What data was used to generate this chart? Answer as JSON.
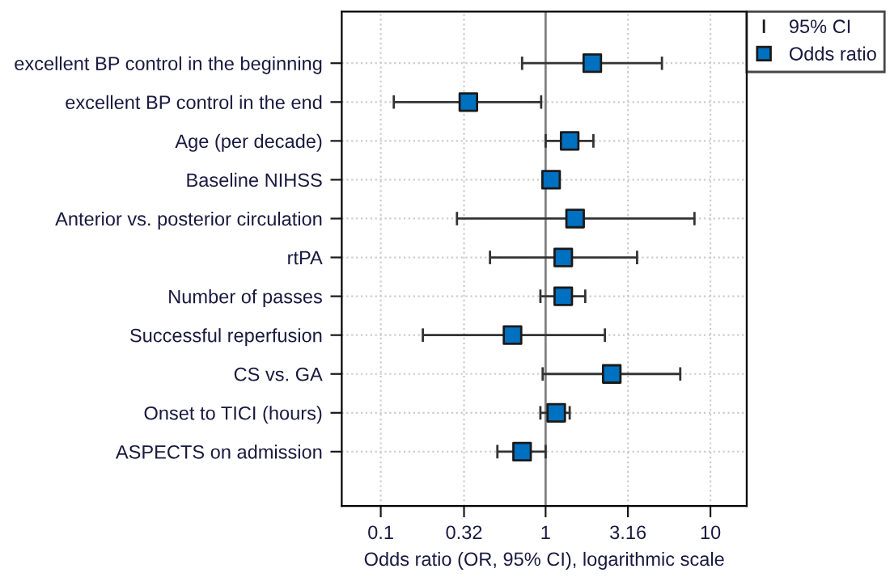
{
  "chart_data": {
    "type": "scatter",
    "orientation": "horizontal",
    "xlabel": "Odds ratio (OR, 95% CI), logarithmic scale",
    "categories": [
      "excellent BP control in the beginning",
      "excellent BP control in the end",
      "Age (per decade)",
      "Baseline NIHSS",
      "Anterior vs. posterior circulation",
      "rtPA",
      "Number of passes",
      "Successful reperfusion",
      "CS vs. GA",
      "Onset to TICI (hours)",
      "ASPECTS on admission"
    ],
    "series": [
      {
        "name": "Odds ratio",
        "color": "#0070c0",
        "values": [
          1.92,
          0.34,
          1.4,
          1.08,
          1.51,
          1.28,
          1.28,
          0.63,
          2.52,
          1.16,
          0.72
        ],
        "errors": [
          [
            0.72,
            5.08
          ],
          [
            0.12,
            0.94
          ],
          [
            1.0,
            1.95
          ],
          null,
          [
            0.29,
            8.0
          ],
          [
            0.46,
            3.59
          ],
          [
            0.93,
            1.74
          ],
          [
            0.18,
            2.29
          ],
          [
            0.96,
            6.56
          ],
          [
            0.93,
            1.4
          ],
          [
            0.51,
            1.0
          ]
        ]
      }
    ],
    "annotations": [
      "95% CI"
    ],
    "log": "x",
    "xlim": [
      0.058,
      16.6
    ],
    "xticks": [
      0.1,
      0.32,
      1,
      3.16,
      10
    ],
    "ref_lines": [
      {
        "axis": "x",
        "value": 1,
        "color": "#808080"
      }
    ],
    "grid": true,
    "legend": "top right",
    "marker": "square"
  }
}
